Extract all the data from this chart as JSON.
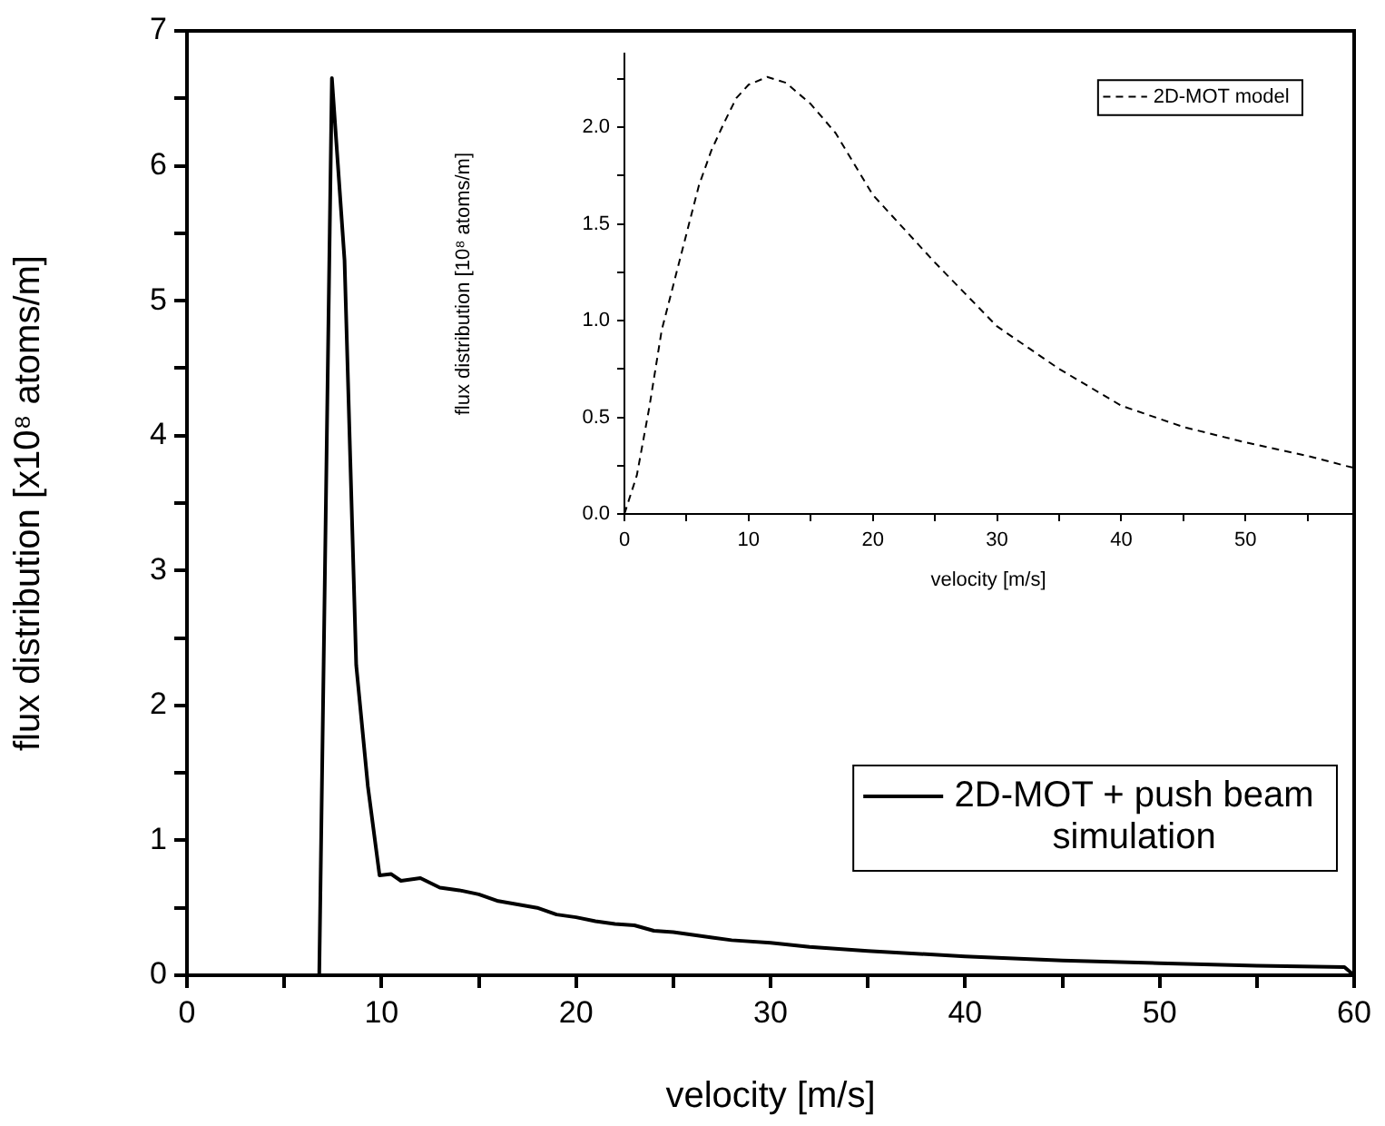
{
  "chart_data": [
    {
      "type": "line",
      "xlabel": "velocity [m/s]",
      "ylabel": "flux distribution [x10⁸ atoms/m]",
      "x": [
        6.8,
        7.45,
        8.1,
        8.7,
        9.3,
        9.9,
        10.5,
        11,
        12,
        13,
        14,
        15,
        16,
        18,
        19,
        20,
        21,
        22,
        23,
        24,
        25,
        26,
        27,
        28,
        30,
        32,
        35,
        40,
        45,
        50,
        55,
        59.5,
        60
      ],
      "series": [
        {
          "name": "2D-MOT + push beam simulation",
          "color": "#000000",
          "values": [
            0,
            6.65,
            5.3,
            2.3,
            1.4,
            0.74,
            0.75,
            0.7,
            0.72,
            0.65,
            0.63,
            0.6,
            0.55,
            0.5,
            0.45,
            0.43,
            0.4,
            0.38,
            0.37,
            0.33,
            0.32,
            0.3,
            0.28,
            0.26,
            0.24,
            0.21,
            0.18,
            0.14,
            0.11,
            0.09,
            0.07,
            0.06,
            0
          ]
        }
      ],
      "xlim": [
        0,
        60
      ],
      "ylim": [
        0,
        7
      ],
      "xticks": [
        0,
        {
          "value": 5,
          "label": null
        },
        10,
        {
          "value": 15,
          "label": null
        },
        20,
        {
          "value": 25,
          "label": null
        },
        30,
        {
          "value": 35,
          "label": null
        },
        40,
        {
          "value": 45,
          "label": null
        },
        50,
        {
          "value": 55,
          "label": null
        },
        60
      ],
      "yticks": [
        0,
        {
          "value": 0.5,
          "label": null
        },
        1,
        {
          "value": 1.5,
          "label": null
        },
        2,
        {
          "value": 2.5,
          "label": null
        },
        3,
        {
          "value": 3.5,
          "label": null
        },
        4,
        {
          "value": 4.5,
          "label": null
        },
        5,
        {
          "value": 5.5,
          "label": null
        },
        6,
        {
          "value": 6.5,
          "label": null
        },
        7
      ],
      "legend": "bottom right",
      "line_style": "solid"
    },
    {
      "type": "line",
      "xlabel": "velocity [m/s]",
      "ylabel": "flux distribution [10⁸ atoms/m]",
      "x": [
        0,
        1,
        2,
        3,
        4,
        5,
        6,
        7,
        8,
        9,
        10,
        11.5,
        13,
        15,
        17,
        20,
        25,
        30,
        35,
        40,
        45,
        50,
        55,
        58.6
      ],
      "series": [
        {
          "name": "2D-MOT model",
          "color": "#000000",
          "values": [
            0,
            0.2,
            0.55,
            0.95,
            1.2,
            1.45,
            1.7,
            1.88,
            2.02,
            2.15,
            2.22,
            2.26,
            2.23,
            2.12,
            1.97,
            1.65,
            1.3,
            0.97,
            0.75,
            0.56,
            0.45,
            0.37,
            0.3,
            0.24
          ]
        }
      ],
      "xlim": [
        0,
        58.6
      ],
      "ylim": [
        0,
        2.38
      ],
      "xticks": [
        0,
        {
          "value": 5,
          "label": null
        },
        10,
        {
          "value": 15,
          "label": null
        },
        20,
        {
          "value": 25,
          "label": null
        },
        30,
        {
          "value": 35,
          "label": null
        },
        40,
        {
          "value": 45,
          "label": null
        },
        50,
        {
          "value": 55,
          "label": null
        }
      ],
      "yticks": [
        {
          "value": 0,
          "label": "0.0"
        },
        {
          "value": 0.25,
          "label": null
        },
        {
          "value": 0.5,
          "label": "0.5"
        },
        {
          "value": 0.75,
          "label": null
        },
        {
          "value": 1,
          "label": "1.0"
        },
        {
          "value": 1.25,
          "label": null
        },
        {
          "value": 1.5,
          "label": "1.5"
        },
        {
          "value": 1.75,
          "label": null
        },
        {
          "value": 2,
          "label": "2.0"
        },
        {
          "value": 2.25,
          "label": null
        }
      ],
      "legend": "top right",
      "line_style": "dashed"
    }
  ]
}
